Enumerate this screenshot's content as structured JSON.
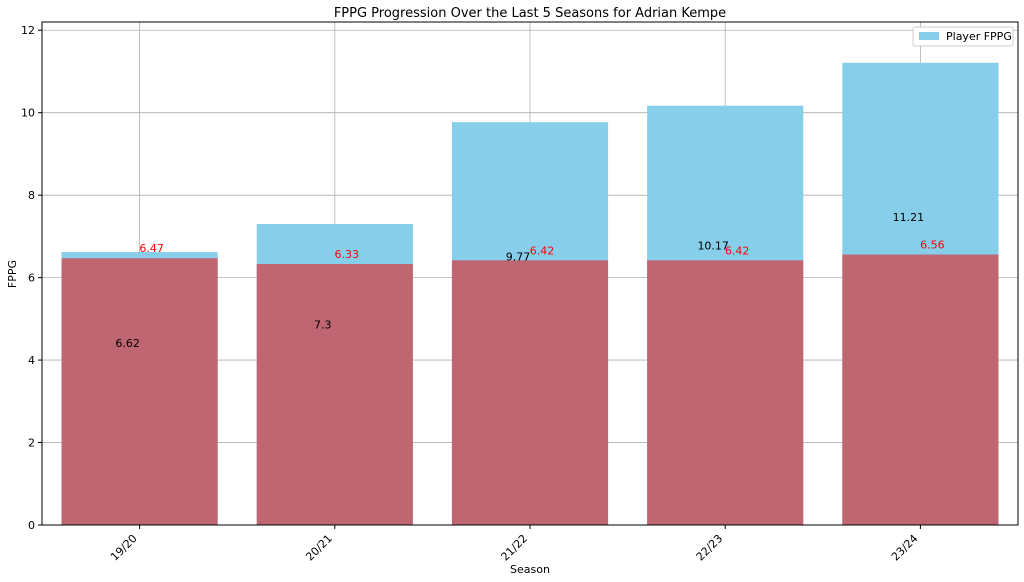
{
  "chart_data": {
    "type": "bar",
    "title": "FPPG Progression Over the Last 5 Seasons for Adrian Kempe",
    "xlabel": "Season",
    "ylabel": "FPPG",
    "categories": [
      "19/20",
      "20/21",
      "21/22",
      "22/23",
      "23/24"
    ],
    "series": [
      {
        "name": "Player FPPG",
        "values": [
          6.62,
          7.3,
          9.77,
          10.17,
          11.21
        ],
        "color": "#87ceeb",
        "label_color": "#000000"
      },
      {
        "values": [
          6.47,
          6.33,
          6.42,
          6.42,
          6.56
        ],
        "color": "#c06672",
        "label_color": "#ff0000"
      }
    ],
    "ylim": [
      0,
      12.2
    ],
    "yticks": [
      0,
      2,
      4,
      6,
      8,
      10,
      12
    ],
    "grid": true,
    "legend": "top-right"
  }
}
